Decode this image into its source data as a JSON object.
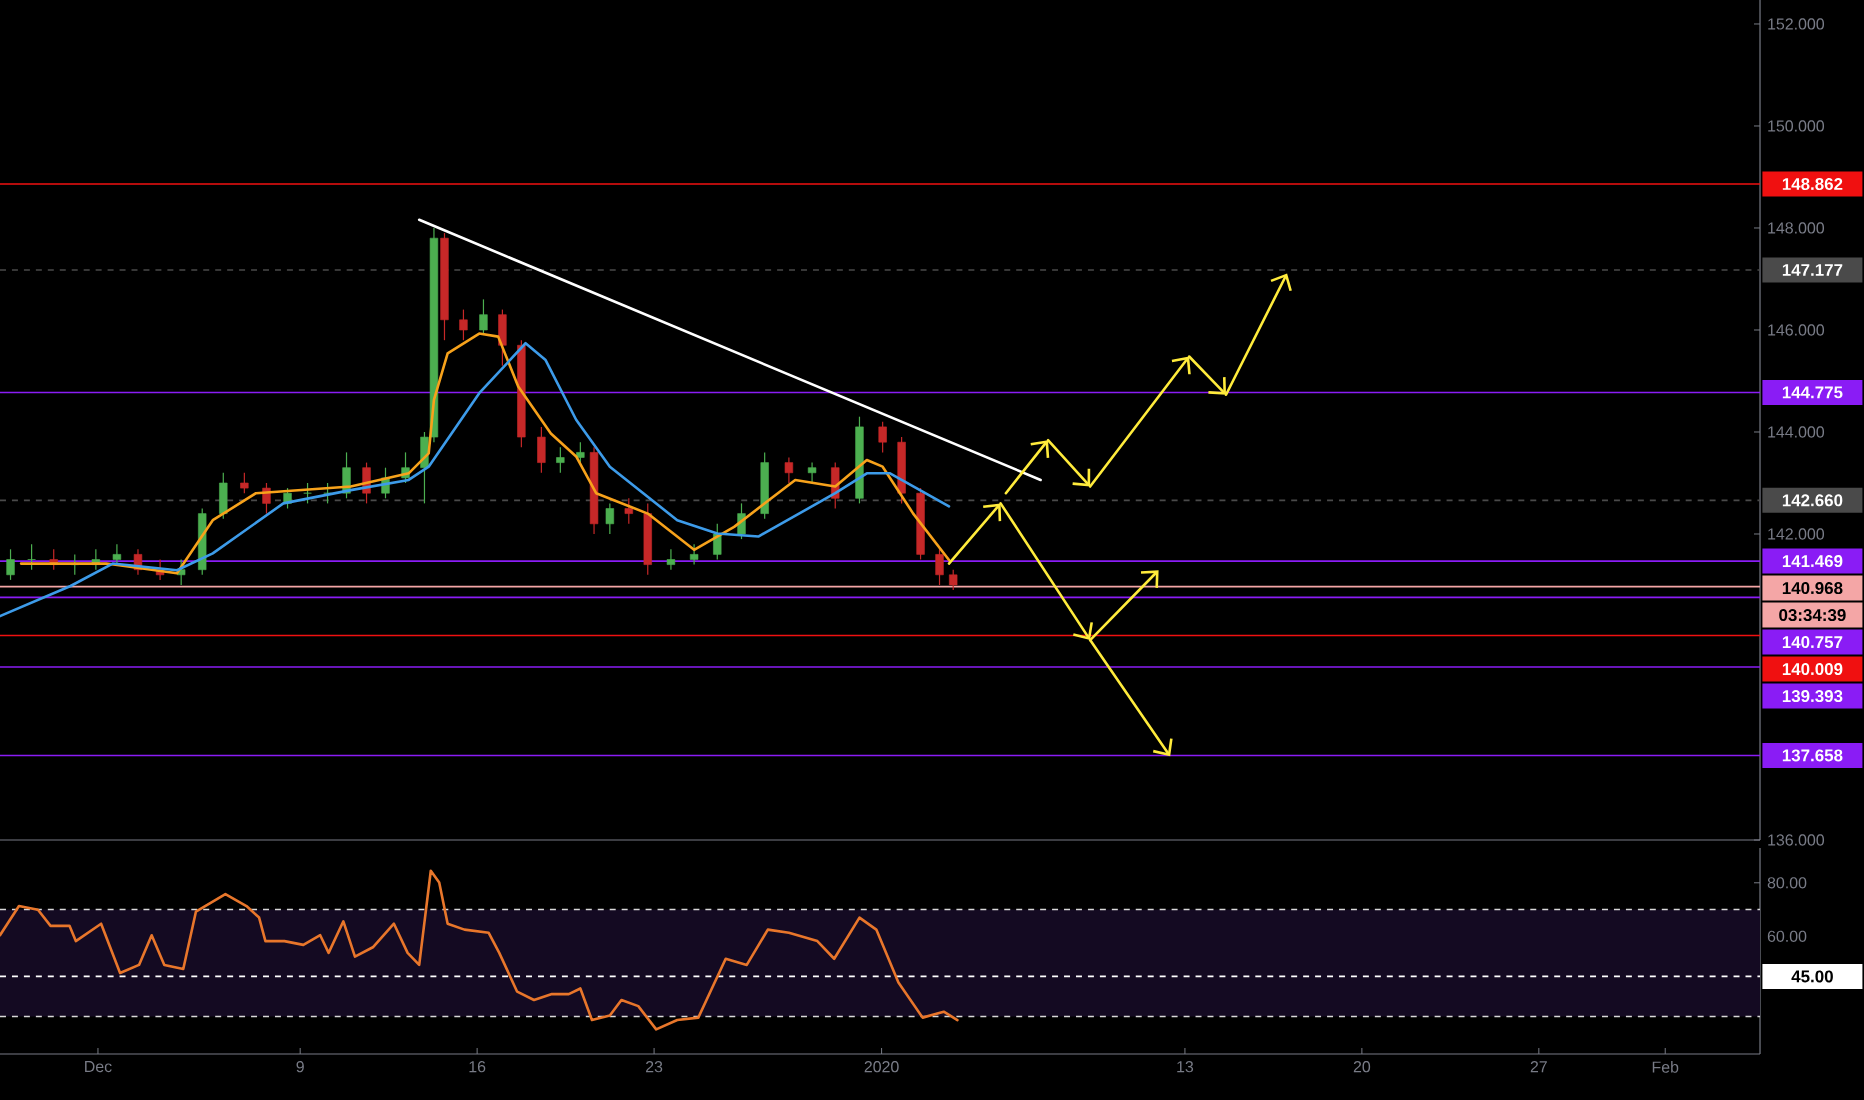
{
  "chart_data": [
    {
      "type": "candlestick",
      "x": [
        "2019-11-27T13:00",
        "2019-11-28T09:00",
        "2019-11-29T06:00",
        "2019-11-30T02:00",
        "2019-11-30T22:00",
        "2019-12-01T18:00",
        "2019-12-02T14:00",
        "2019-12-03T11:00",
        "2019-12-04T07:00",
        "2019-12-05T03:00",
        "2019-12-05T23:00",
        "2019-12-06T19:00",
        "2019-12-07T16:00",
        "2019-12-08T12:00",
        "2019-12-09T07:00",
        "2019-12-10T02:00",
        "2019-12-10T20:00",
        "2019-12-11T15:00",
        "2019-12-12T09:00",
        "2019-12-13T04:00",
        "2019-12-13T22:00",
        "2019-12-14T07:00",
        "2019-12-14T17:00",
        "2019-12-15T11:00",
        "2019-12-16T06:00",
        "2019-12-17T00:00",
        "2019-12-17T18:00",
        "2019-12-18T13:00",
        "2019-12-19T07:00",
        "2019-12-20T02:00",
        "2019-12-20T15:00",
        "2019-12-21T06:00",
        "2019-12-22T00:00",
        "2019-12-22T18:00",
        "2019-12-23T16:00",
        "2019-12-24T14:00",
        "2019-12-25T12:00",
        "2019-12-26T11:00",
        "2019-12-27T09:00",
        "2019-12-28T08:00",
        "2019-12-29T06:00",
        "2019-12-30T04:00",
        "2019-12-31T03:00",
        "2020-01-01T01:00",
        "2020-01-01T19:00",
        "2020-01-02T13:00",
        "2020-01-03T07:00",
        "2020-01-03T20:00"
      ],
      "ohlc": [
        [
          141.2,
          141.7,
          141.1,
          141.5
        ],
        [
          141.5,
          141.8,
          141.3,
          141.5
        ],
        [
          141.5,
          141.7,
          141.3,
          141.4
        ],
        [
          141.4,
          141.6,
          141.2,
          141.4
        ],
        [
          141.4,
          141.7,
          141.3,
          141.5
        ],
        [
          141.5,
          141.8,
          141.4,
          141.6
        ],
        [
          141.6,
          141.7,
          141.2,
          141.3
        ],
        [
          141.3,
          141.5,
          141.1,
          141.2
        ],
        [
          141.2,
          141.5,
          141.0,
          141.3
        ],
        [
          141.3,
          142.5,
          141.2,
          142.4
        ],
        [
          142.4,
          143.2,
          142.3,
          143.0
        ],
        [
          143.0,
          143.2,
          142.8,
          142.9
        ],
        [
          142.9,
          143.0,
          142.4,
          142.6
        ],
        [
          142.6,
          142.9,
          142.5,
          142.8
        ],
        [
          142.8,
          143.0,
          142.6,
          142.8
        ],
        [
          142.8,
          143.0,
          142.6,
          142.8
        ],
        [
          142.8,
          143.6,
          142.7,
          143.3
        ],
        [
          143.3,
          143.4,
          142.6,
          142.8
        ],
        [
          142.8,
          143.3,
          142.7,
          143.1
        ],
        [
          143.1,
          143.6,
          143.0,
          143.3
        ],
        [
          143.3,
          144.0,
          142.6,
          143.9
        ],
        [
          143.9,
          148.0,
          143.8,
          147.8
        ],
        [
          147.8,
          147.9,
          145.8,
          146.2
        ],
        [
          146.2,
          146.4,
          145.8,
          146.0
        ],
        [
          146.0,
          146.6,
          145.9,
          146.3
        ],
        [
          146.3,
          146.4,
          145.3,
          145.7
        ],
        [
          145.7,
          145.8,
          143.7,
          143.9
        ],
        [
          143.9,
          144.1,
          143.2,
          143.4
        ],
        [
          143.4,
          143.7,
          143.2,
          143.5
        ],
        [
          143.5,
          143.8,
          143.4,
          143.6
        ],
        [
          143.6,
          143.7,
          142.0,
          142.2
        ],
        [
          142.2,
          142.6,
          142.0,
          142.5
        ],
        [
          142.5,
          142.7,
          142.2,
          142.4
        ],
        [
          142.4,
          142.6,
          141.2,
          141.4
        ],
        [
          141.4,
          141.7,
          141.3,
          141.5
        ],
        [
          141.5,
          141.8,
          141.4,
          141.6
        ],
        [
          141.6,
          142.2,
          141.5,
          142.0
        ],
        [
          142.0,
          142.6,
          141.9,
          142.4
        ],
        [
          142.4,
          143.6,
          142.3,
          143.4
        ],
        [
          143.4,
          143.5,
          143.0,
          143.2
        ],
        [
          143.2,
          143.4,
          143.0,
          143.3
        ],
        [
          143.3,
          143.4,
          142.5,
          142.7
        ],
        [
          142.7,
          144.3,
          142.6,
          144.1
        ],
        [
          144.1,
          144.2,
          143.6,
          143.8
        ],
        [
          143.8,
          143.9,
          142.6,
          142.8
        ],
        [
          142.8,
          142.9,
          141.5,
          141.6
        ],
        [
          141.6,
          141.7,
          141.0,
          141.2
        ],
        [
          141.2,
          141.3,
          140.9,
          141.0
        ]
      ],
      "series": [
        {
          "type": "line",
          "color": "#f7a21b",
          "x": [
            "2019-11-27T23:00",
            "2019-12-01T08:00",
            "2019-12-04T03:00",
            "2019-12-05T13:00",
            "2019-12-07T06:00",
            "2019-12-11T00:00",
            "2019-12-13T07:00",
            "2019-12-14T02:00",
            "2019-12-14T07:00",
            "2019-12-14T20:00",
            "2019-12-16T02:00",
            "2019-12-16T20:00",
            "2019-12-17T15:00",
            "2019-12-18T22:00",
            "2019-12-19T22:00",
            "2019-12-20T17:00",
            "2019-12-22T18:00",
            "2019-12-24T14:00",
            "2019-12-26T04:00",
            "2019-12-28T14:00",
            "2019-12-30T04:00",
            "2019-12-31T10:00",
            "2020-01-01T01:00",
            "2020-01-02T06:00",
            "2020-01-03T16:00"
          ],
          "values": [
            141.42,
            141.42,
            141.23,
            142.27,
            142.8,
            142.93,
            143.19,
            143.58,
            144.63,
            145.54,
            145.93,
            145.87,
            144.89,
            143.97,
            143.52,
            142.8,
            142.4,
            141.69,
            142.14,
            143.06,
            142.93,
            143.45,
            143.32,
            142.4,
            141.49
          ]
        },
        {
          "type": "line",
          "color": "#3d9be9",
          "x": [
            "2019-11-27T03:00",
            "2019-11-29T22:00",
            "2019-12-01T14:00",
            "2019-12-04T03:00",
            "2019-12-05T13:00",
            "2019-12-08T08:00",
            "2019-12-11T00:00",
            "2019-12-13T07:00",
            "2019-12-14T02:00",
            "2019-12-16T02:00",
            "2019-12-17T22:00",
            "2019-12-18T17:00",
            "2019-12-19T22:00",
            "2019-12-21T06:00",
            "2019-12-23T22:00",
            "2019-12-25T12:00",
            "2019-12-27T03:00",
            "2019-12-30T04:00",
            "2019-12-31T10:00",
            "2020-01-01T08:00",
            "2020-01-03T16:00"
          ],
          "values": [
            140.39,
            140.98,
            141.42,
            141.29,
            141.62,
            142.6,
            142.86,
            143.06,
            143.32,
            144.76,
            145.74,
            145.41,
            144.24,
            143.32,
            142.27,
            142.01,
            141.95,
            142.8,
            143.19,
            143.19,
            142.54
          ]
        },
        {
          "type": "line",
          "color": "#ffffff",
          "x": [
            "2019-12-13T17:00",
            "2020-01-07T07:00"
          ],
          "values": [
            148.16,
            143.06
          ]
        }
      ],
      "xlim": [
        "2019-11-27T03:00",
        "2020-02-04T18:00"
      ],
      "ylim": [
        136,
        152.47
      ],
      "yticks": [
        {
          "value": 152,
          "label": "152.000"
        },
        {
          "value": 150,
          "label": "150.000"
        },
        {
          "value": 148,
          "label": "148.000"
        },
        {
          "value": 146,
          "label": "146.000"
        },
        {
          "value": 144,
          "label": "144.000"
        },
        {
          "value": 142,
          "label": "142.000"
        },
        {
          "value": 136,
          "label": "136.000"
        }
      ],
      "tick_labels": "y",
      "ref_lines": [
        {
          "axis": "y",
          "value": 148.862,
          "label": "148.862",
          "color": "#f01010"
        },
        {
          "axis": "y",
          "value": 147.177,
          "label": "147.177",
          "color": "#4a4a4a",
          "line_style": "dashed"
        },
        {
          "axis": "y",
          "value": 144.775,
          "label": "144.775",
          "color": "#8a1cf5"
        },
        {
          "axis": "y",
          "value": 142.66,
          "label": "142.660",
          "color": "#4a4a4a",
          "line_style": "dashed"
        },
        {
          "axis": "y",
          "value": 141.469,
          "label": "141.469",
          "color": "#8a1cf5"
        },
        {
          "axis": "y",
          "value": 140.968,
          "label": "140.968",
          "color": "#f4a6a6"
        },
        {
          "axis": "y",
          "value": 140.757,
          "label": "140.757",
          "color": "#8a1cf5"
        },
        {
          "axis": "y",
          "value": 140.009,
          "label": "140.009",
          "color": "#f01010"
        },
        {
          "axis": "y",
          "value": 139.393,
          "label": "139.393",
          "color": "#8a1cf5"
        },
        {
          "axis": "y",
          "value": 137.658,
          "label": "137.658",
          "color": "#8a1cf5"
        }
      ],
      "annotations": [
        "03:34:39"
      ]
    },
    {
      "type": "line",
      "color": "#e8762b",
      "x": [
        "2019-11-27T03:00",
        "2019-11-27T21:00",
        "2019-11-28T15:00",
        "2019-11-29T03:00",
        "2019-11-29T21:00",
        "2019-11-30T03:00",
        "2019-12-01T03:00",
        "2019-12-01T21:00",
        "2019-12-02T15:00",
        "2019-12-03T03:00",
        "2019-12-03T15:00",
        "2019-12-04T09:00",
        "2019-12-04T21:00",
        "2019-12-06T01:00",
        "2019-12-06T21:00",
        "2019-12-07T09:00",
        "2019-12-07T15:00",
        "2019-12-08T09:00",
        "2019-12-09T03:00",
        "2019-12-09T19:00",
        "2019-12-10T03:00",
        "2019-12-10T17:00",
        "2019-12-11T04:00",
        "2019-12-11T21:00",
        "2019-12-12T17:00",
        "2019-12-13T06:00",
        "2019-12-13T17:00",
        "2019-12-14T04:00",
        "2019-12-14T12:00",
        "2019-12-14T20:00",
        "2019-12-15T12:00",
        "2019-12-16T11:00",
        "2019-12-16T21:00",
        "2019-12-17T14:00",
        "2019-12-18T06:00",
        "2019-12-18T23:00",
        "2019-12-19T15:00",
        "2019-12-20T02:00",
        "2019-12-20T13:00",
        "2019-12-21T06:00",
        "2019-12-21T17:00",
        "2019-12-22T09:00",
        "2019-12-23T02:00",
        "2019-12-23T22:00",
        "2019-12-24T18:00",
        "2019-12-25T20:00",
        "2019-12-26T16:00",
        "2019-12-27T12:00",
        "2019-12-28T08:00",
        "2019-12-29T11:00",
        "2019-12-30T03:00",
        "2019-12-31T03:00",
        "2019-12-31T19:00",
        "2020-01-01T16:00",
        "2020-01-02T15:00",
        "2020-01-03T11:00",
        "2020-01-04T00:00"
      ],
      "values": [
        60.4,
        71.3,
        69.9,
        63.9,
        63.9,
        58.2,
        64.7,
        46.3,
        49.3,
        60.4,
        49.3,
        47.8,
        69.2,
        75.8,
        71.3,
        67.0,
        58.2,
        58.2,
        56.8,
        60.4,
        53.8,
        65.6,
        52.4,
        55.9,
        64.7,
        53.8,
        49.3,
        84.5,
        80.1,
        64.7,
        62.5,
        61.3,
        53.8,
        39.3,
        36.2,
        38.4,
        38.4,
        40.5,
        28.7,
        30.4,
        36.2,
        33.9,
        25.2,
        28.7,
        29.6,
        51.6,
        49.3,
        62.5,
        61.3,
        58.2,
        51.6,
        67.0,
        62.5,
        42.7,
        29.6,
        31.8,
        28.7
      ],
      "xlim": [
        "2019-11-27T03:00",
        "2020-02-04T18:00"
      ],
      "ylim": [
        16,
        93
      ],
      "xticks": [
        {
          "value": "2019-12-01",
          "label": "Dec"
        },
        {
          "value": "2019-12-09",
          "label": "9"
        },
        {
          "value": "2019-12-16",
          "label": "16"
        },
        {
          "value": "2019-12-23",
          "label": "23"
        },
        {
          "value": "2020-01-01",
          "label": "2020"
        },
        {
          "value": "2020-01-13",
          "label": "13"
        },
        {
          "value": "2020-01-20",
          "label": "20"
        },
        {
          "value": "2020-01-27",
          "label": "27"
        },
        {
          "value": "2020-02-01",
          "label": "Feb"
        }
      ],
      "yticks": [
        {
          "value": 80,
          "label": "80.00"
        },
        {
          "value": 60,
          "label": "60.00"
        }
      ],
      "bands": [
        {
          "axis": "y",
          "from": 30,
          "to": 70,
          "color": "#140a22"
        }
      ],
      "ref_lines": [
        {
          "axis": "y",
          "value": 70,
          "color": "#d8d8d8",
          "line_style": "dashed"
        },
        {
          "axis": "y",
          "value": 45,
          "label": "45.00",
          "color": "#ffffff",
          "line_style": "dashed"
        },
        {
          "axis": "y",
          "value": 30,
          "color": "#d8d8d8",
          "line_style": "dashed"
        }
      ]
    }
  ]
}
